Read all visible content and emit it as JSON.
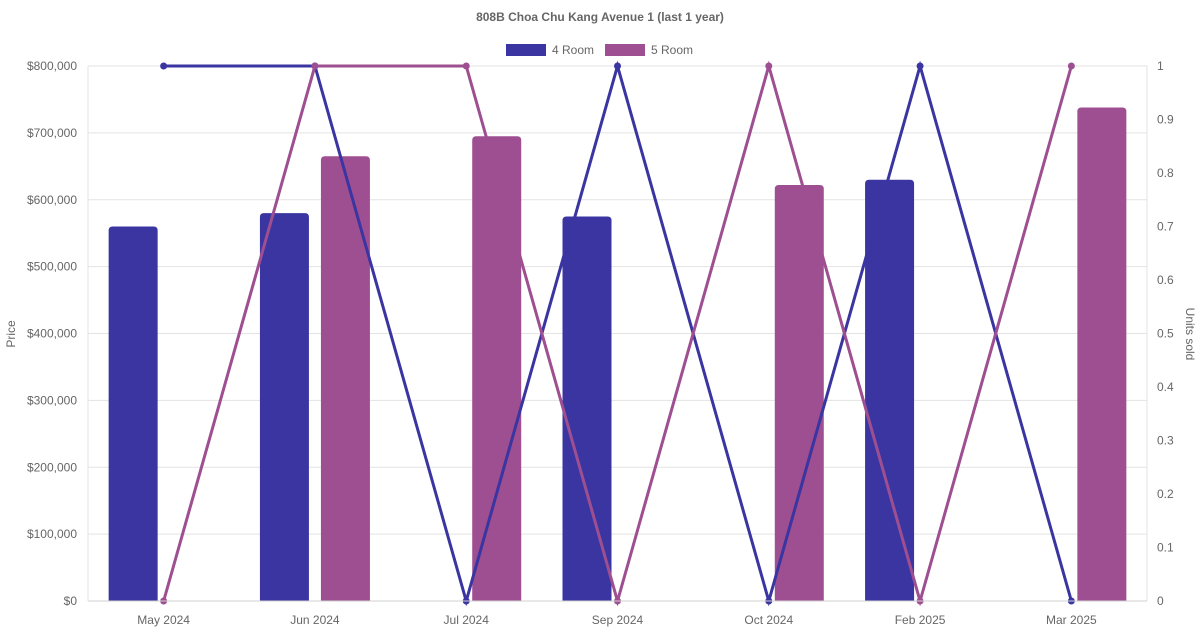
{
  "chart_data": {
    "type": "bar",
    "title": "808B Choa Chu Kang Avenue 1 (last 1 year)",
    "categories": [
      "May 2024",
      "Jun 2024",
      "Jul 2024",
      "Sep 2024",
      "Oct 2024",
      "Feb 2025",
      "Mar 2025"
    ],
    "ylabel": "Price",
    "y2label": "Units sold",
    "ylim": [
      0,
      800000
    ],
    "y2lim": [
      0,
      1
    ],
    "yticks": [
      "$0",
      "$100,000",
      "$200,000",
      "$300,000",
      "$400,000",
      "$500,000",
      "$600,000",
      "$700,000",
      "$800,000"
    ],
    "y2ticks": [
      "0",
      "0.1",
      "0.2",
      "0.3",
      "0.4",
      "0.5",
      "0.6",
      "0.7",
      "0.8",
      "0.9",
      "1"
    ],
    "legend_position": "top",
    "grid": true,
    "series": [
      {
        "name": "4 Room",
        "color": "#3a35a0",
        "price": [
          560000,
          580000,
          null,
          575000,
          null,
          630000,
          null
        ],
        "units": [
          1,
          1,
          0,
          1,
          0,
          1,
          0
        ]
      },
      {
        "name": "5 Room",
        "color": "#9e4f92",
        "price": [
          null,
          665000,
          695000,
          null,
          622000,
          null,
          738000
        ],
        "units": [
          0,
          1,
          1,
          0,
          1,
          0,
          1
        ]
      }
    ]
  }
}
